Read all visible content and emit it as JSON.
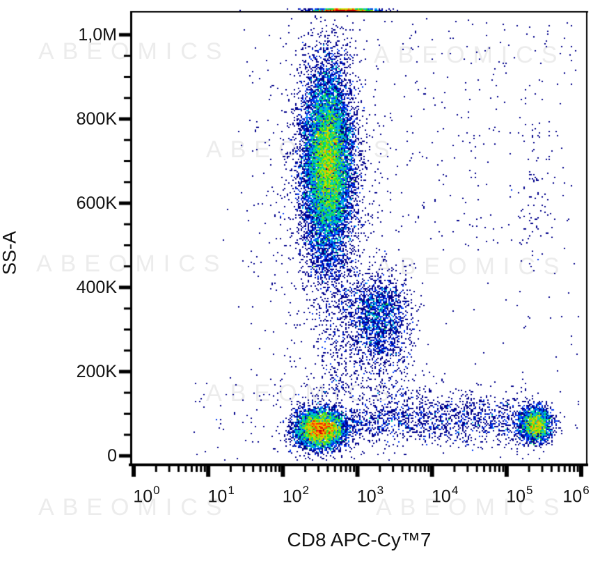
{
  "watermark": {
    "text": "ABEOMICS",
    "color": "#ececec"
  },
  "chart_data": {
    "type": "scatter",
    "subtype": "flow-cytometry-pseudocolor-density-plot",
    "title": "",
    "xlabel": "CD8 APC-Cy™7",
    "ylabel": "SS-A",
    "x_axis": {
      "scale": "log10",
      "min_exponent": 0,
      "max_exponent": 6,
      "tick_base": "10",
      "tick_exponents": [
        0,
        1,
        2,
        3,
        4,
        5,
        6
      ],
      "minor_ticks": "log-spaced 2-9 within each decade"
    },
    "y_axis": {
      "scale": "linear",
      "min": 0,
      "max": 1050000,
      "major_ticks": [
        {
          "label": "1,0M",
          "value": 1000000
        },
        {
          "label": "800K",
          "value": 800000
        },
        {
          "label": "600K",
          "value": 600000
        },
        {
          "label": "400K",
          "value": 400000
        },
        {
          "label": "200K",
          "value": 200000
        },
        {
          "label": "0",
          "value": 0
        }
      ],
      "minor_tick_interval": 50000
    },
    "legend": "none",
    "grid": false,
    "density_palette": [
      [
        0.0,
        "#00008B"
      ],
      [
        0.18,
        "#0000F0"
      ],
      [
        0.34,
        "#0090FF"
      ],
      [
        0.46,
        "#00D8D0"
      ],
      [
        0.56,
        "#00D850"
      ],
      [
        0.66,
        "#70E800"
      ],
      [
        0.76,
        "#E0E000"
      ],
      [
        0.85,
        "#FF9800"
      ],
      [
        0.93,
        "#FF3000"
      ],
      [
        1.0,
        "#C80000"
      ]
    ],
    "seed": 42,
    "populations": [
      {
        "name": "granulocytes",
        "n": 13000,
        "x": {
          "dist": "normal",
          "mean": 2.6,
          "sd": 0.165
        },
        "y": {
          "dist": "normal",
          "mean": 695000,
          "sd": 112000
        }
      },
      {
        "name": "granulocyte-halo",
        "n": 1000,
        "x": {
          "dist": "normal",
          "mean": 2.58,
          "sd": 0.4
        },
        "y": {
          "dist": "normal",
          "mean": 660000,
          "sd": 185000
        }
      },
      {
        "name": "top-offscale-pileup",
        "n": 1100,
        "x": {
          "dist": "normal",
          "mean": 2.83,
          "sd": 0.2
        },
        "y": {
          "dist": "const",
          "value": 2000000
        }
      },
      {
        "name": "lymphocytes-cd8neg",
        "n": 5200,
        "x": {
          "dist": "normal",
          "mean": 2.51,
          "sd": 0.17
        },
        "y": {
          "dist": "normal",
          "mean": 64000,
          "sd": 23000
        }
      },
      {
        "name": "lymphocytes-cd8pos",
        "n": 2000,
        "x": {
          "dist": "normal",
          "mean": 5.4,
          "sd": 0.105
        },
        "y": {
          "dist": "normal",
          "mean": 74000,
          "sd": 21000
        }
      },
      {
        "name": "cd8-dim-band",
        "n": 1600,
        "x": {
          "dist": "uniform",
          "min": 2.9,
          "max": 5.3
        },
        "y": {
          "dist": "normal",
          "mean": 86000,
          "sd": 30000
        }
      },
      {
        "name": "monocytes",
        "n": 1800,
        "x": {
          "dist": "normal",
          "mean": 3.28,
          "sd": 0.21
        },
        "y": {
          "dist": "normal",
          "mean": 330000,
          "sd": 52000
        }
      },
      {
        "name": "debris-connector",
        "n": 430,
        "x": {
          "dist": "normal",
          "mean": 2.72,
          "sd": 0.17
        },
        "y": {
          "dist": "uniform",
          "min": 140000,
          "max": 490000
        }
      },
      {
        "name": "sub-monocyte-trail",
        "n": 230,
        "x": {
          "dist": "normal",
          "mean": 3.35,
          "sd": 0.25
        },
        "y": {
          "dist": "uniform",
          "min": 140000,
          "max": 275000
        }
      },
      {
        "name": "sparse-right-upper",
        "n": 170,
        "x": {
          "dist": "uniform",
          "min": 3.6,
          "max": 5.9
        },
        "y": {
          "dist": "uniform",
          "min": 500000,
          "max": 1030000
        }
      },
      {
        "name": "right-edge-trail",
        "n": 70,
        "x": {
          "dist": "normal",
          "mean": 5.35,
          "sd": 0.1
        },
        "y": {
          "dist": "uniform",
          "min": 440000,
          "max": 790000
        }
      },
      {
        "name": "sparse-background",
        "n": 300,
        "x": {
          "dist": "uniform",
          "min": 1.4,
          "max": 6.0
        },
        "y": {
          "dist": "uniform",
          "min": 20000,
          "max": 1040000
        }
      },
      {
        "name": "sparse-left-low",
        "n": 70,
        "x": {
          "dist": "uniform",
          "min": 0.8,
          "max": 2.3
        },
        "y": {
          "dist": "normal",
          "mean": 90000,
          "sd": 60000
        }
      }
    ]
  }
}
